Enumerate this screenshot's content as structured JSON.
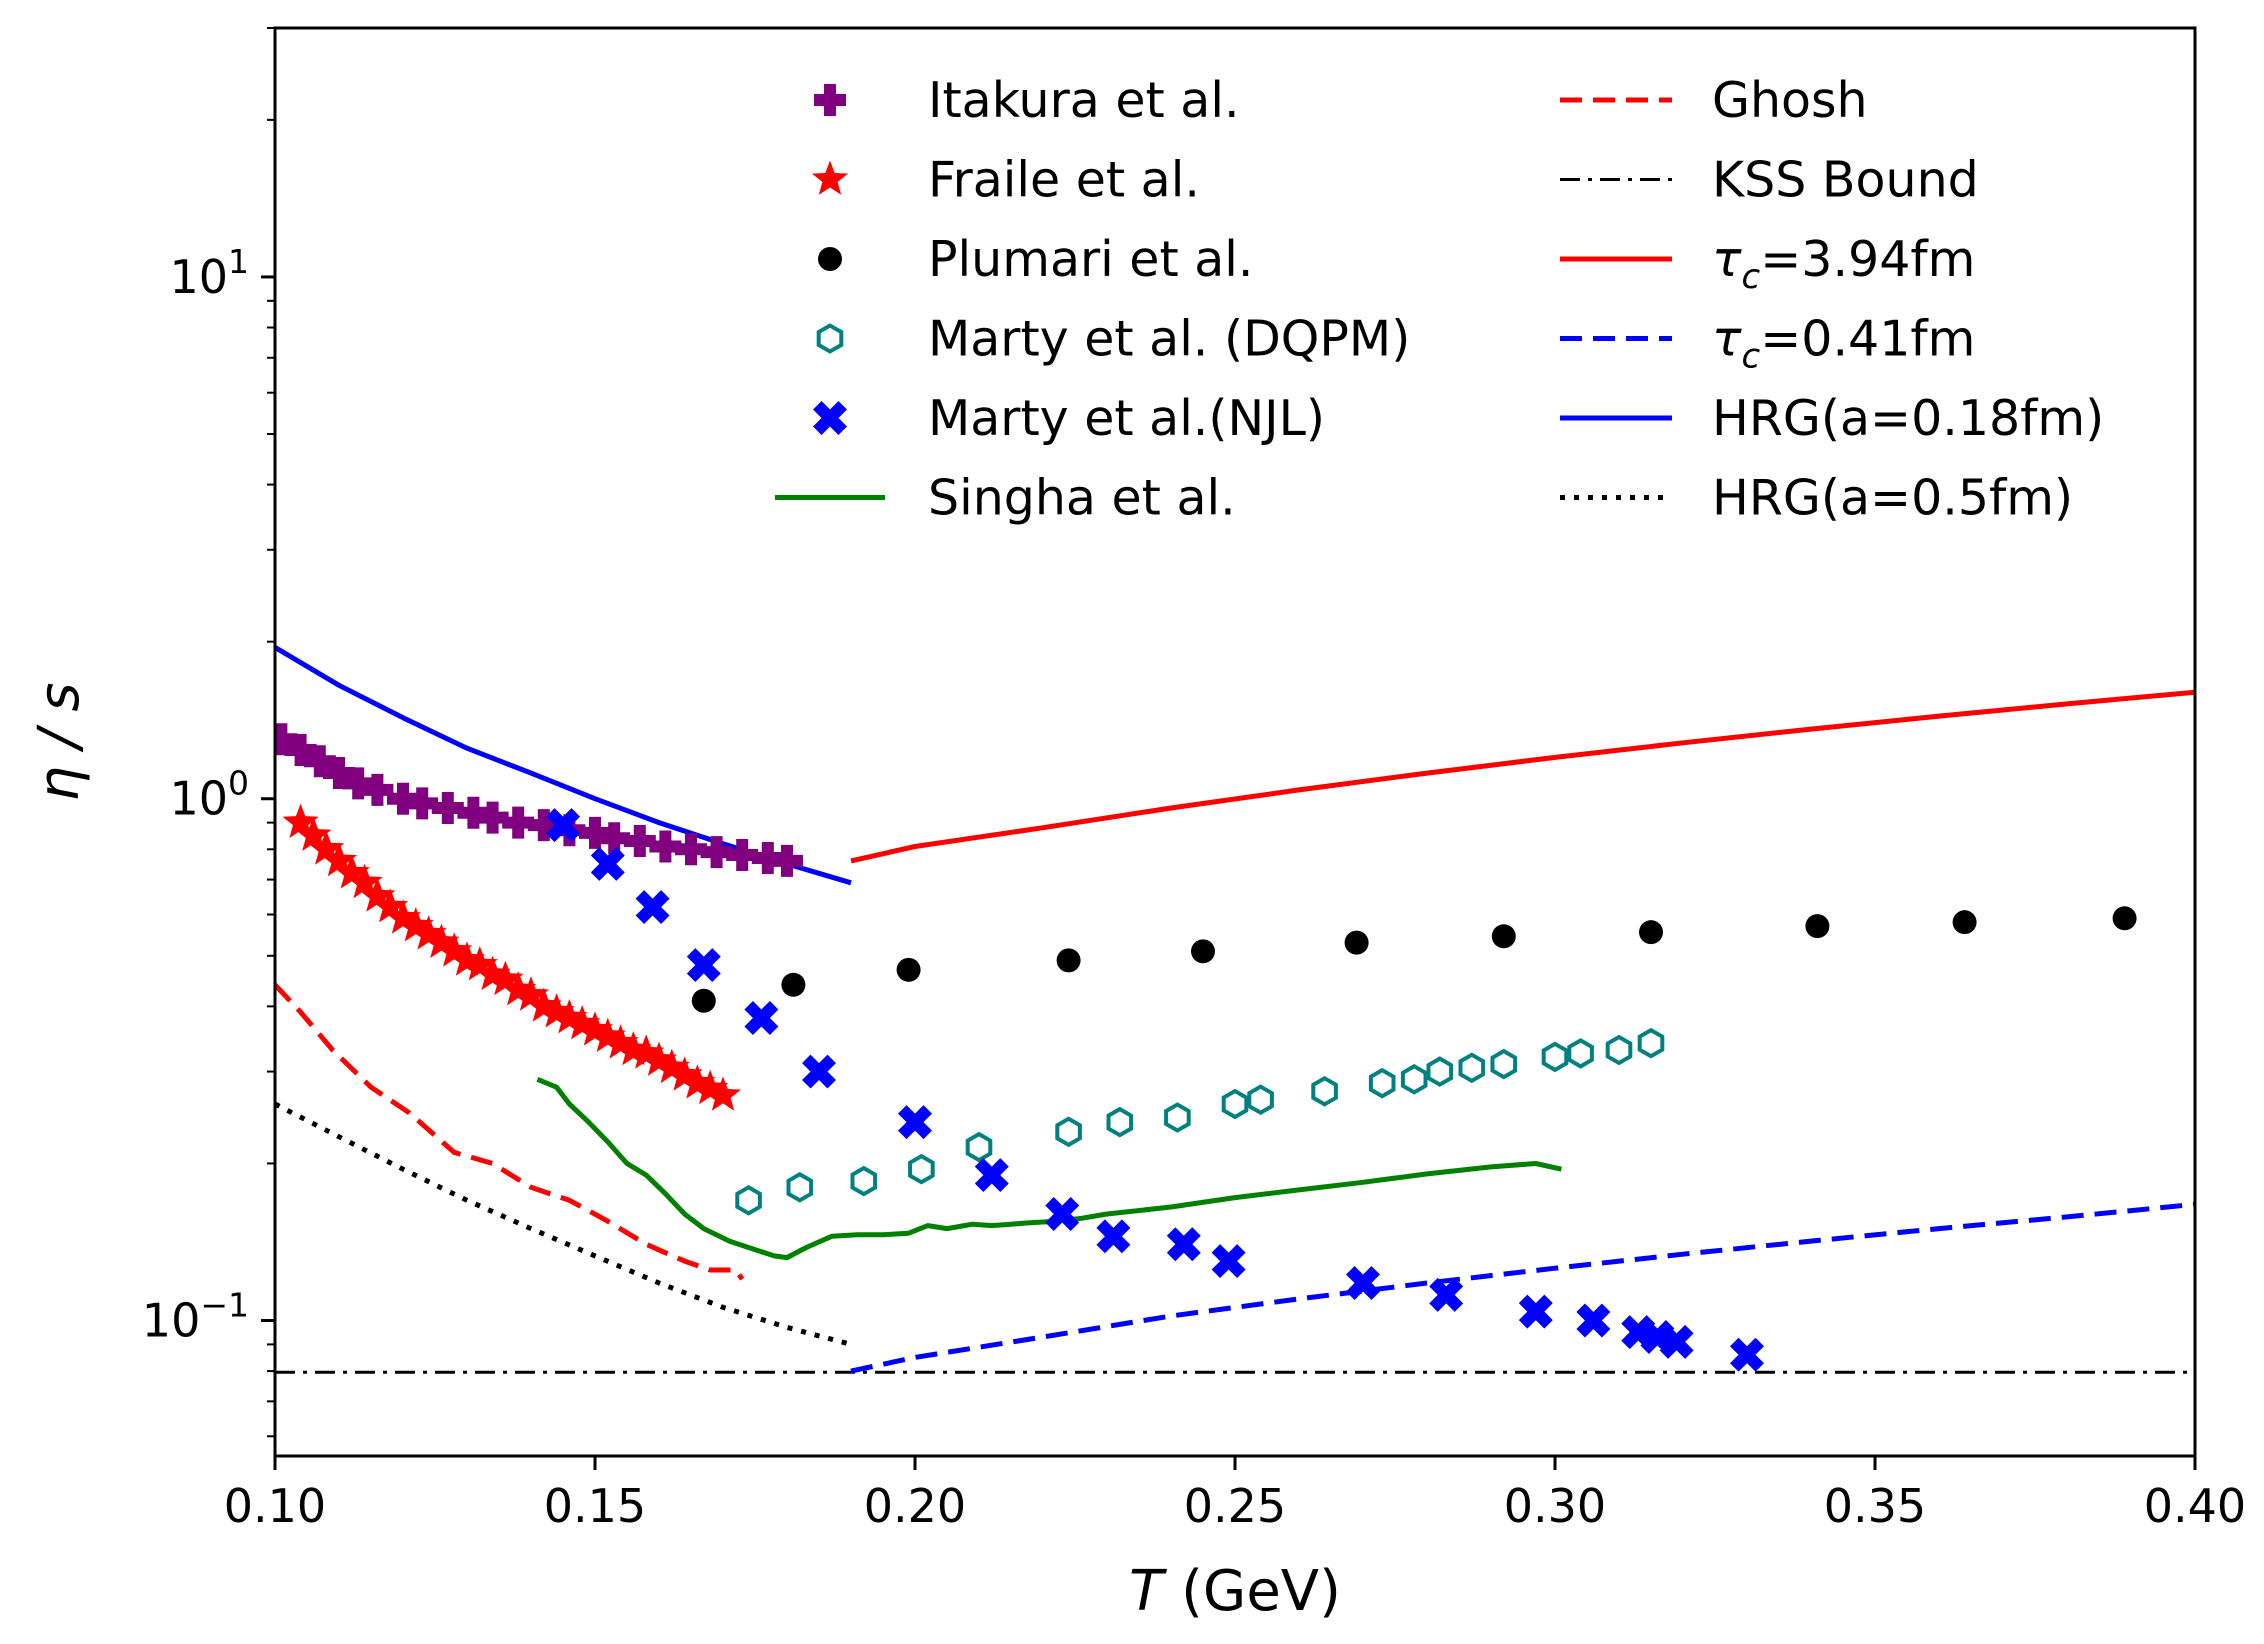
{
  "chart_data": {
    "type": "scatter",
    "xlabel_var": "T",
    "xlabel_unit": " (GeV)",
    "ylabel": "η / s",
    "xscale": "linear",
    "yscale": "log",
    "xlim": [
      0.1,
      0.4
    ],
    "ylim": [
      0.055,
      30
    ],
    "x_ticks": [
      {
        "v": 0.1,
        "label": "0.10"
      },
      {
        "v": 0.15,
        "label": "0.15"
      },
      {
        "v": 0.2,
        "label": "0.20"
      },
      {
        "v": 0.25,
        "label": "0.25"
      },
      {
        "v": 0.3,
        "label": "0.30"
      },
      {
        "v": 0.35,
        "label": "0.35"
      },
      {
        "v": 0.4,
        "label": "0.40"
      }
    ],
    "y_ticks": [
      {
        "v": 0.1,
        "base": "10",
        "exp": "−1"
      },
      {
        "v": 1,
        "base": "10",
        "exp": "0"
      },
      {
        "v": 10,
        "base": "10",
        "exp": "1"
      }
    ],
    "series": [
      {
        "name": "Itakura et al.",
        "kind": "marker",
        "marker": "plus",
        "color": "#800080",
        "x": [
          0.101,
          0.104,
          0.107,
          0.11,
          0.113,
          0.116,
          0.12,
          0.123,
          0.127,
          0.131,
          0.134,
          0.138,
          0.142,
          0.146,
          0.15,
          0.153,
          0.157,
          0.161,
          0.165,
          0.169,
          0.173,
          0.177,
          0.18
        ],
        "y": [
          1.3,
          1.24,
          1.18,
          1.12,
          1.07,
          1.04,
          1.0,
          0.98,
          0.96,
          0.94,
          0.92,
          0.9,
          0.89,
          0.87,
          0.86,
          0.84,
          0.83,
          0.81,
          0.8,
          0.79,
          0.78,
          0.77,
          0.76
        ]
      },
      {
        "name": "Fraile et al.",
        "kind": "marker",
        "marker": "star",
        "color": "#ff0000",
        "x": [
          0.104,
          0.106,
          0.108,
          0.11,
          0.112,
          0.114,
          0.116,
          0.118,
          0.12,
          0.122,
          0.124,
          0.126,
          0.128,
          0.13,
          0.132,
          0.134,
          0.136,
          0.138,
          0.14,
          0.142,
          0.144,
          0.146,
          0.148,
          0.15,
          0.152,
          0.154,
          0.156,
          0.158,
          0.16,
          0.162,
          0.164,
          0.166,
          0.168,
          0.17
        ],
        "y": [
          0.9,
          0.85,
          0.8,
          0.76,
          0.72,
          0.69,
          0.65,
          0.62,
          0.59,
          0.57,
          0.55,
          0.53,
          0.51,
          0.49,
          0.48,
          0.46,
          0.45,
          0.43,
          0.42,
          0.4,
          0.39,
          0.38,
          0.37,
          0.36,
          0.35,
          0.34,
          0.33,
          0.325,
          0.315,
          0.305,
          0.295,
          0.285,
          0.278,
          0.27
        ]
      },
      {
        "name": "Plumari et al.",
        "kind": "marker",
        "marker": "dot",
        "color": "#000000",
        "x": [
          0.167,
          0.181,
          0.199,
          0.224,
          0.245,
          0.269,
          0.292,
          0.315,
          0.341,
          0.364,
          0.389
        ],
        "y": [
          0.41,
          0.44,
          0.47,
          0.49,
          0.51,
          0.53,
          0.545,
          0.555,
          0.57,
          0.58,
          0.59
        ]
      },
      {
        "name": "Marty et al. (DQPM)",
        "kind": "marker",
        "marker": "hexagon",
        "color": "#008080",
        "x": [
          0.174,
          0.182,
          0.192,
          0.201,
          0.21,
          0.224,
          0.232,
          0.241,
          0.25,
          0.254,
          0.264,
          0.273,
          0.278,
          0.282,
          0.287,
          0.292,
          0.3,
          0.304,
          0.31,
          0.315
        ],
        "y": [
          0.17,
          0.18,
          0.185,
          0.195,
          0.215,
          0.23,
          0.24,
          0.245,
          0.26,
          0.265,
          0.275,
          0.285,
          0.29,
          0.3,
          0.305,
          0.31,
          0.32,
          0.325,
          0.33,
          0.34
        ]
      },
      {
        "name": "Marty et al.(NJL)",
        "kind": "marker",
        "marker": "xcross",
        "color": "#0000ff",
        "x": [
          0.145,
          0.152,
          0.159,
          0.167,
          0.176,
          0.185,
          0.2,
          0.212,
          0.223,
          0.231,
          0.242,
          0.249,
          0.27,
          0.283,
          0.297,
          0.306,
          0.313,
          0.316,
          0.319,
          0.33
        ],
        "y": [
          0.89,
          0.75,
          0.62,
          0.48,
          0.38,
          0.3,
          0.24,
          0.19,
          0.16,
          0.145,
          0.14,
          0.13,
          0.118,
          0.112,
          0.104,
          0.1,
          0.095,
          0.093,
          0.091,
          0.086
        ]
      },
      {
        "name": "Singha et al.",
        "kind": "line",
        "dash": "solid",
        "color": "#008000",
        "x": [
          0.141,
          0.144,
          0.146,
          0.149,
          0.152,
          0.155,
          0.158,
          0.161,
          0.164,
          0.167,
          0.171,
          0.174,
          0.178,
          0.18,
          0.183,
          0.187,
          0.191,
          0.195,
          0.199,
          0.202,
          0.205,
          0.209,
          0.212,
          0.215,
          0.218,
          0.222,
          0.226,
          0.23,
          0.24,
          0.25,
          0.26,
          0.27,
          0.28,
          0.29,
          0.297,
          0.301
        ],
        "y": [
          0.29,
          0.28,
          0.26,
          0.24,
          0.22,
          0.2,
          0.19,
          0.175,
          0.16,
          0.15,
          0.142,
          0.138,
          0.133,
          0.132,
          0.138,
          0.145,
          0.146,
          0.146,
          0.147,
          0.152,
          0.15,
          0.153,
          0.152,
          0.153,
          0.154,
          0.155,
          0.157,
          0.16,
          0.165,
          0.172,
          0.178,
          0.184,
          0.191,
          0.197,
          0.2,
          0.195
        ]
      },
      {
        "name": "Ghosh",
        "kind": "line",
        "dash": "dashed",
        "color": "#ff0000",
        "x": [
          0.1,
          0.104,
          0.109,
          0.115,
          0.121,
          0.128,
          0.134,
          0.14,
          0.146,
          0.152,
          0.158,
          0.164,
          0.168,
          0.172,
          0.173
        ],
        "y": [
          0.44,
          0.39,
          0.33,
          0.28,
          0.25,
          0.21,
          0.2,
          0.18,
          0.17,
          0.155,
          0.14,
          0.13,
          0.125,
          0.125,
          0.12
        ]
      },
      {
        "name": "KSS Bound",
        "kind": "line",
        "dash": "dashdot",
        "color": "#000000",
        "x": [
          0.1,
          0.4
        ],
        "y": [
          0.0796,
          0.0796
        ]
      },
      {
        "name": "τ_c=3.94fm",
        "kind": "line",
        "dash": "solid",
        "color": "#ff0000",
        "x": [
          0.19,
          0.2,
          0.22,
          0.24,
          0.26,
          0.28,
          0.3,
          0.32,
          0.34,
          0.36,
          0.38,
          0.4
        ],
        "y": [
          0.76,
          0.81,
          0.88,
          0.96,
          1.04,
          1.12,
          1.2,
          1.28,
          1.36,
          1.44,
          1.52,
          1.6
        ]
      },
      {
        "name": "τ_c=0.41fm",
        "kind": "line",
        "dash": "dashed",
        "color": "#0000ff",
        "x": [
          0.19,
          0.2,
          0.22,
          0.24,
          0.26,
          0.28,
          0.3,
          0.32,
          0.34,
          0.36,
          0.38,
          0.4
        ],
        "y": [
          0.08,
          0.085,
          0.093,
          0.102,
          0.11,
          0.118,
          0.126,
          0.134,
          0.142,
          0.15,
          0.158,
          0.167
        ]
      },
      {
        "name": "HRG(a=0.18fm)",
        "kind": "line",
        "dash": "solid",
        "color": "#0000ff",
        "x": [
          0.1,
          0.11,
          0.12,
          0.13,
          0.14,
          0.15,
          0.16,
          0.17,
          0.18,
          0.19
        ],
        "y": [
          1.95,
          1.65,
          1.43,
          1.25,
          1.12,
          1.0,
          0.9,
          0.82,
          0.75,
          0.69
        ]
      },
      {
        "name": "HRG(a=0.5fm)",
        "kind": "line",
        "dash": "dotted",
        "color": "#000000",
        "x": [
          0.1,
          0.11,
          0.12,
          0.13,
          0.14,
          0.15,
          0.16,
          0.17,
          0.18,
          0.19
        ],
        "y": [
          0.26,
          0.225,
          0.195,
          0.17,
          0.15,
          0.133,
          0.118,
          0.106,
          0.097,
          0.09
        ]
      }
    ],
    "legend": {
      "placement": "top",
      "left_entries": [
        {
          "label": "Itakura et al.",
          "marker": "plus",
          "color": "#800080"
        },
        {
          "label": "Fraile et al.",
          "marker": "star",
          "color": "#ff0000"
        },
        {
          "label": "Plumari et al.",
          "marker": "dot",
          "color": "#000000"
        },
        {
          "label": "Marty et al. (DQPM)",
          "marker": "hexagon",
          "color": "#008080"
        },
        {
          "label": "Marty et al.(NJL)",
          "marker": "xcross",
          "color": "#0000ff"
        },
        {
          "label": "Singha et al.",
          "line": "solid",
          "color": "#008000"
        }
      ],
      "right_entries": [
        {
          "label": "Ghosh",
          "line": "dashed",
          "color": "#ff0000"
        },
        {
          "label": "KSS Bound",
          "line": "dashdot",
          "color": "#000000"
        },
        {
          "label": "=3.94fm",
          "tau": true,
          "line": "solid",
          "color": "#ff0000"
        },
        {
          "label": "=0.41fm",
          "tau": true,
          "line": "dashed",
          "color": "#0000ff"
        },
        {
          "label": "HRG(a=0.18fm)",
          "line": "solid",
          "color": "#0000ff"
        },
        {
          "label": "HRG(a=0.5fm)",
          "line": "dotted",
          "color": "#000000"
        }
      ]
    }
  }
}
